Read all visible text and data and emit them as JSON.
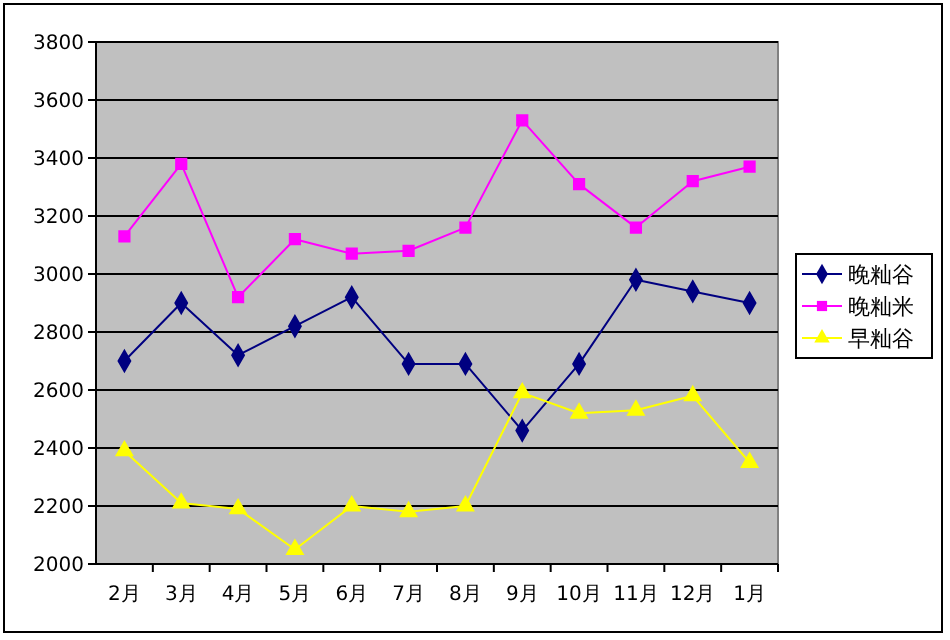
{
  "chart_data": {
    "type": "line",
    "categories": [
      "2月",
      "3月",
      "4月",
      "5月",
      "6月",
      "7月",
      "8月",
      "9月",
      "10月",
      "11月",
      "12月",
      "1月"
    ],
    "series": [
      {
        "name": "晚籼谷",
        "color": "#000080",
        "marker": "diamond",
        "values": [
          2700,
          2900,
          2720,
          2820,
          2920,
          2690,
          2690,
          2460,
          2690,
          2980,
          2940,
          2900
        ]
      },
      {
        "name": "晚籼米",
        "color": "#ff00ff",
        "marker": "square",
        "values": [
          3130,
          3380,
          2920,
          3120,
          3070,
          3080,
          3160,
          3530,
          3310,
          3160,
          3320,
          3370
        ]
      },
      {
        "name": "早籼谷",
        "color": "#ffff00",
        "marker": "triangle",
        "values": [
          2390,
          2210,
          2190,
          2050,
          2200,
          2180,
          2200,
          2590,
          2520,
          2530,
          2580,
          2350
        ]
      }
    ],
    "ylim": [
      2000,
      3800
    ],
    "yticks": [
      2000,
      2200,
      2400,
      2600,
      2800,
      3000,
      3200,
      3400,
      3600,
      3800
    ],
    "grid": "y",
    "legend": "right"
  }
}
